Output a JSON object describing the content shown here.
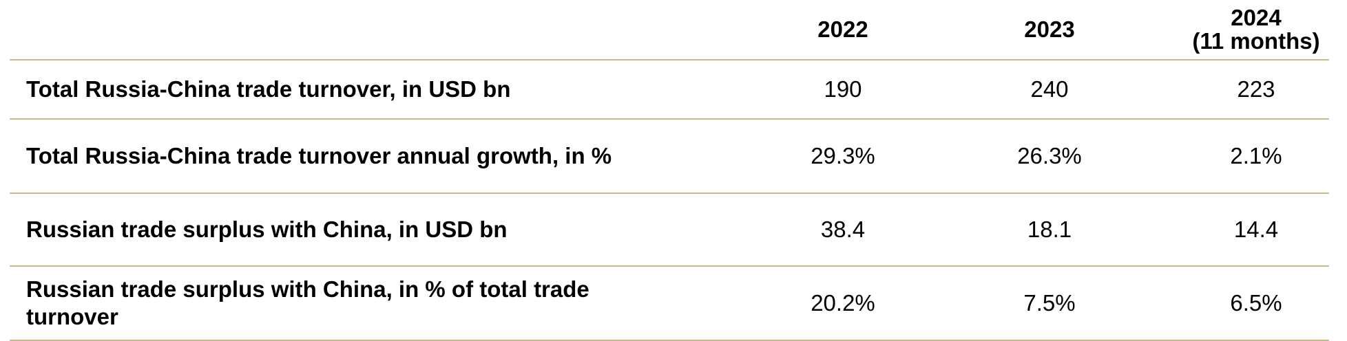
{
  "chart_data": {
    "type": "table",
    "columns": [
      "2022",
      "2023",
      "2024\n(11 months)"
    ],
    "rows": [
      {
        "label": "Total Russia-China trade turnover, in USD bn",
        "values": [
          "190",
          "240",
          "223"
        ]
      },
      {
        "label": "Total Russia-China trade turnover annual growth, in %",
        "values": [
          "29.3%",
          "26.3%",
          "2.1%"
        ]
      },
      {
        "label": "Russian trade surplus with China, in USD bn",
        "values": [
          "38.4",
          "18.1",
          "14.4"
        ]
      },
      {
        "label": "Russian trade surplus with China, in % of total trade turnover",
        "values": [
          "20.2%",
          "7.5%",
          "6.5%"
        ]
      }
    ],
    "border_color": "#c8b98e"
  }
}
